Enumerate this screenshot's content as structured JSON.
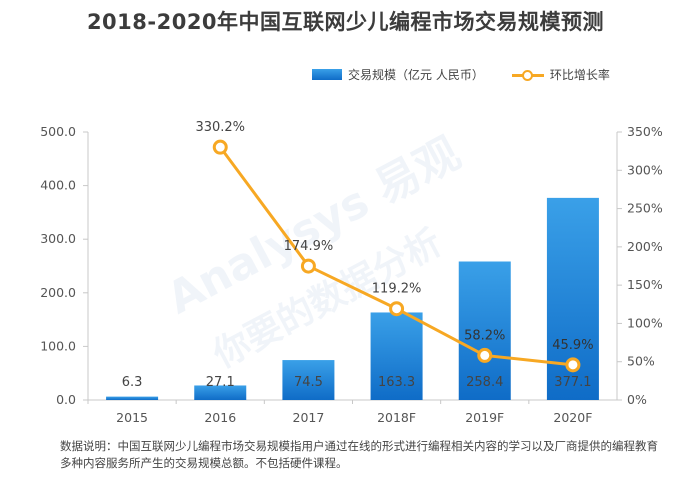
{
  "title": "2018-2020年中国互联网少儿编程市场交易规模预测",
  "legend": {
    "bar": "交易规模（亿元 人民币）",
    "line": "环比增长率"
  },
  "note": "数据说明：中国互联网少儿编程市场交易规模指用户通过在线的形式进行编程相关内容的学习以及厂商提供的编程教育多种内容服务所产生的交易规模总额。不包括硬件课程。",
  "watermark": {
    "line1": "Analysys 易观",
    "line2": "你要的数据分析"
  },
  "colors": {
    "bar_top": "#3aa0e8",
    "bar_bottom": "#0f6cc7",
    "line": "#f7a823"
  },
  "chart_data": {
    "type": "bar",
    "categories": [
      "2015",
      "2016",
      "2017",
      "2018F",
      "2019F",
      "2020F"
    ],
    "series": [
      {
        "name": "交易规模（亿元 人民币）",
        "type": "bar",
        "axis": "left",
        "values": [
          6.3,
          27.1,
          74.5,
          163.3,
          258.4,
          377.1
        ],
        "labels": [
          "6.3",
          "27.1",
          "74.5",
          "163.3",
          "258.4",
          "377.1"
        ]
      },
      {
        "name": "环比增长率",
        "type": "line",
        "axis": "right",
        "values": [
          null,
          330.2,
          174.9,
          119.2,
          58.2,
          45.9
        ],
        "labels": [
          "",
          "330.2%",
          "174.9%",
          "119.2%",
          "58.2%",
          "45.9%"
        ]
      }
    ],
    "y_left": {
      "range": [
        0,
        500
      ],
      "ticks": [
        "0.0",
        "100.0",
        "200.0",
        "300.0",
        "400.0",
        "500.0"
      ]
    },
    "y_right": {
      "range": [
        0,
        350
      ],
      "ticks": [
        "0%",
        "50%",
        "100%",
        "150%",
        "200%",
        "250%",
        "300%",
        "350%"
      ]
    },
    "grid": false,
    "legend_position": "top-right"
  }
}
